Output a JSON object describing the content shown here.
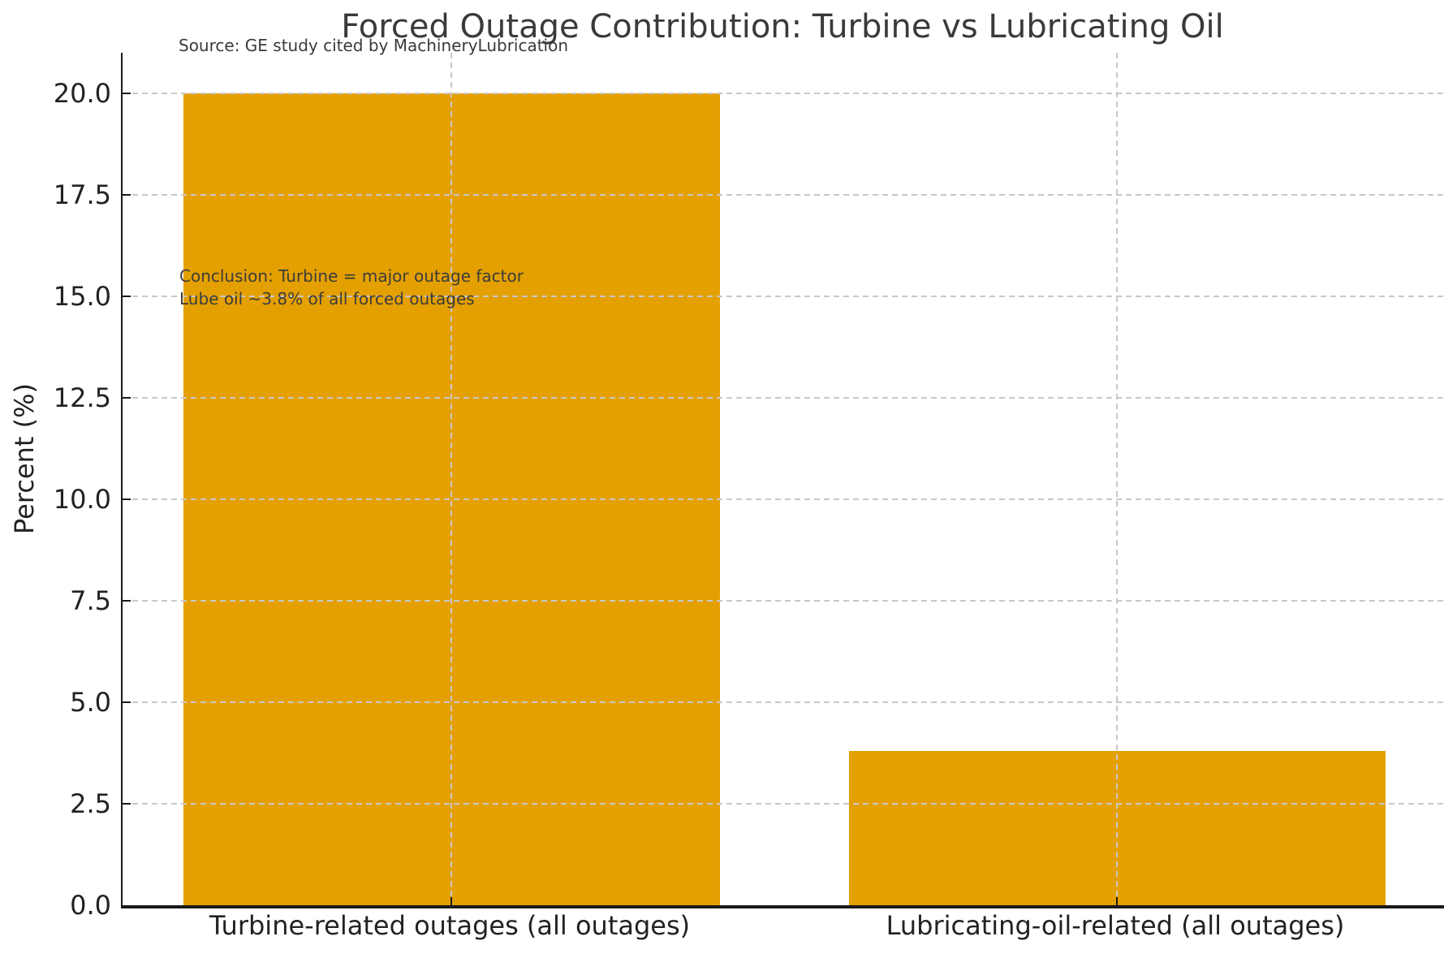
{
  "page": {
    "title": "Forced Outage Contribution: Turbine vs Lubricating Oil",
    "source_note": "Source: GE study cited by MachineryLubrication",
    "annotation": {
      "line1": "Conclusion: Turbine = major outage factor",
      "line2": "Lube oil ~3.8% of all forced outages"
    }
  },
  "chart_data": {
    "type": "bar",
    "title": "Forced Outage Contribution: Turbine vs Lubricating Oil",
    "subtitle": "Source: GE study cited by MachineryLubrication",
    "categories": [
      "Turbine-related outages (all outages)",
      "Lubricating-oil-related (all outages)"
    ],
    "values": [
      20.0,
      3.8
    ],
    "xlabel": "",
    "ylabel": "Percent (%)",
    "ylim": [
      0,
      21
    ],
    "yticks": [
      0,
      2.5,
      5,
      7.5,
      10,
      12.5,
      15,
      17.5,
      20
    ],
    "ytick_labels": [
      "0.0",
      "2.5",
      "5.0",
      "7.5",
      "10.0",
      "12.5",
      "15.0",
      "17.5",
      "20.0"
    ],
    "grid": true,
    "grid_style": "dashed",
    "grid_above_bars": true,
    "legend": "none",
    "annotations": [
      "Conclusion: Turbine = major outage factor",
      "Lube oil ~3.8% of all forced outages"
    ]
  },
  "colors": {
    "bar": "#E4A000",
    "title_text": "#3a3a3a",
    "tick_text": "#222222",
    "annotation_text": "#3c3c3c",
    "grid": "#c8c8c8",
    "spine": "#1a1a1a",
    "background": "#ffffff"
  }
}
